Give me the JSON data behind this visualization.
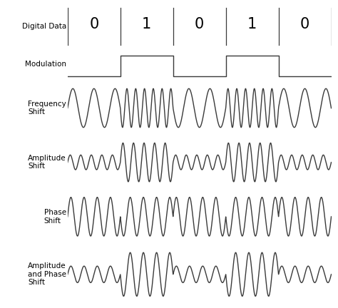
{
  "digital_data": [
    "0",
    "1",
    "0",
    "1",
    "0"
  ],
  "background_color": "#ffffff",
  "line_color": "#3a3a3a",
  "label_color": "#000000",
  "row_labels": [
    "Digital Data",
    "Modulation",
    "Frequency\nShift",
    "Amplitude\nShift",
    "Phase\nShift",
    "Amplitude\nand Phase\nShift"
  ],
  "row_heights": [
    1.2,
    1.0,
    1.6,
    1.6,
    1.6,
    1.8
  ],
  "bit_duration": 1.0,
  "num_bits": 5,
  "carrier_freq_low": 2.5,
  "carrier_freq_high": 6.0,
  "amplitude_low": 0.38,
  "amplitude_high": 1.0,
  "figsize": [
    4.74,
    4.32
  ],
  "dpi": 100
}
